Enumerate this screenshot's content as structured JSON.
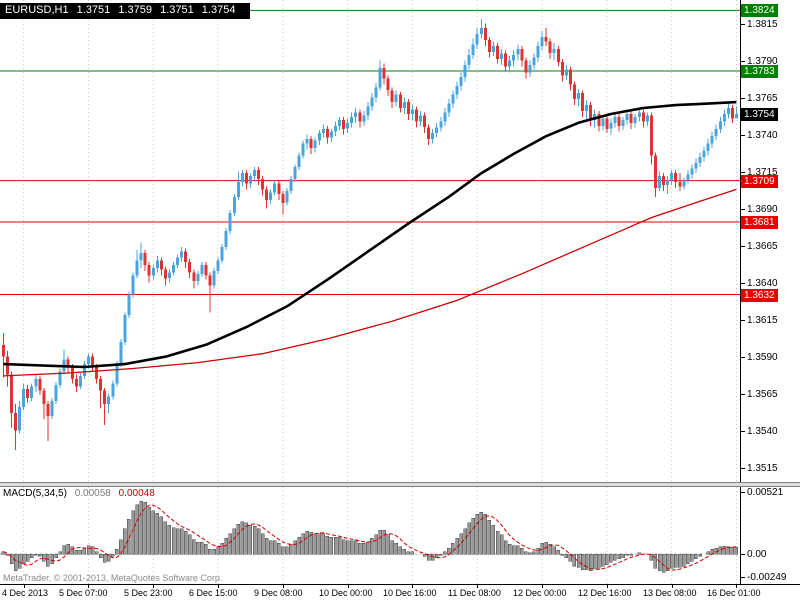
{
  "header": {
    "symbol": "EURUSD,H1",
    "open": "1.3751",
    "high": "1.3759",
    "low": "1.3751",
    "close": "1.3754"
  },
  "watermark": "MetaTrader, © 2001-2013, MetaQuotes Software Corp.",
  "colors": {
    "candle_up": "#4aa3dc",
    "candle_down": "#e03232",
    "ma_black": "#000000",
    "ma_red": "#cc0000",
    "line_green": "#008000",
    "line_red": "#e00000",
    "macd_hist_fill": "#999999",
    "macd_hist_stroke": "#444444",
    "macd_signal": "#d00000",
    "grid": "#c9c9c9",
    "badge_green": "#008000",
    "badge_red": "#e60000",
    "badge_black": "#000000"
  },
  "chart_data": {
    "type": "candlestick",
    "title": "EURUSD H1 with MACD(5,34,5)",
    "symbol": "EURUSD",
    "timeframe": "H1",
    "y_range": [
      1.3505,
      1.3831
    ],
    "price_encoding": {
      "base": 1.3,
      "unit": 0.0001
    },
    "price_ticks": [
      "1.3815",
      "1.3790",
      "1.3765",
      "1.3740",
      "1.3715",
      "1.3690",
      "1.3665",
      "1.3640",
      "1.3615",
      "1.3590",
      "1.3565",
      "1.3540",
      "1.3515"
    ],
    "price_badges": [
      {
        "value": "1.3824",
        "bg": "#008000"
      },
      {
        "value": "1.3783",
        "bg": "#008000"
      },
      {
        "value": "1.3754",
        "bg": "#000000"
      },
      {
        "value": "1.3709",
        "bg": "#e60000"
      },
      {
        "value": "1.3681",
        "bg": "#e60000"
      },
      {
        "value": "1.3632",
        "bg": "#e60000"
      }
    ],
    "hlines": [
      {
        "price": 1.3824,
        "color": "#008000"
      },
      {
        "price": 1.3783,
        "color": "#008000"
      },
      {
        "price": 1.3709,
        "color": "#e00000"
      },
      {
        "price": 1.3681,
        "color": "#e00000"
      },
      {
        "price": 1.3632,
        "color": "#e00000"
      }
    ],
    "time_labels": [
      {
        "text": "4 Dec 2013",
        "i": 5
      },
      {
        "text": "5 Dec 07:00",
        "i": 21
      },
      {
        "text": "5 Dec 23:00",
        "i": 37
      },
      {
        "text": "6 Dec 15:00",
        "i": 53
      },
      {
        "text": "9 Dec 08:00",
        "i": 69
      },
      {
        "text": "10 Dec 00:00",
        "i": 85
      },
      {
        "text": "10 Dec 16:00",
        "i": 101
      },
      {
        "text": "11 Dec 08:00",
        "i": 117
      },
      {
        "text": "12 Dec 00:00",
        "i": 133
      },
      {
        "text": "12 Dec 16:00",
        "i": 149
      },
      {
        "text": "13 Dec 08:00",
        "i": 165
      },
      {
        "text": "16 Dec 01:00",
        "i": 181
      }
    ],
    "candles": [
      [
        598,
        606,
        576,
        590
      ],
      [
        590,
        594,
        570,
        578
      ],
      [
        578,
        580,
        542,
        552
      ],
      [
        552,
        558,
        527,
        540
      ],
      [
        540,
        560,
        538,
        556
      ],
      [
        556,
        572,
        554,
        568
      ],
      [
        568,
        571,
        559,
        562
      ],
      [
        562,
        572,
        560,
        570
      ],
      [
        570,
        578,
        566,
        575
      ],
      [
        575,
        577,
        564,
        567
      ],
      [
        567,
        569,
        548,
        558
      ],
      [
        558,
        560,
        533,
        550
      ],
      [
        550,
        562,
        548,
        560
      ],
      [
        560,
        573,
        558,
        571
      ],
      [
        571,
        582,
        569,
        580
      ],
      [
        580,
        595,
        578,
        588
      ],
      [
        588,
        590,
        579,
        583
      ],
      [
        583,
        585,
        572,
        575
      ],
      [
        575,
        578,
        566,
        570
      ],
      [
        570,
        579,
        568,
        577
      ],
      [
        577,
        587,
        575,
        585
      ],
      [
        585,
        592,
        582,
        590
      ],
      [
        590,
        592,
        580,
        583
      ],
      [
        583,
        585,
        572,
        575
      ],
      [
        575,
        577,
        555,
        567
      ],
      [
        567,
        569,
        544,
        558
      ],
      [
        558,
        565,
        552,
        563
      ],
      [
        563,
        574,
        561,
        572
      ],
      [
        572,
        587,
        570,
        585
      ],
      [
        585,
        602,
        583,
        600
      ],
      [
        600,
        620,
        598,
        618
      ],
      [
        618,
        634,
        616,
        632
      ],
      [
        632,
        647,
        630,
        645
      ],
      [
        645,
        662,
        643,
        655
      ],
      [
        655,
        667,
        650,
        660
      ],
      [
        660,
        662,
        648,
        652
      ],
      [
        652,
        654,
        640,
        645
      ],
      [
        645,
        652,
        642,
        650
      ],
      [
        650,
        658,
        647,
        655
      ],
      [
        655,
        657,
        645,
        649
      ],
      [
        649,
        651,
        638,
        643
      ],
      [
        643,
        649,
        640,
        647
      ],
      [
        647,
        654,
        645,
        652
      ],
      [
        652,
        659,
        650,
        657
      ],
      [
        657,
        664,
        654,
        661
      ],
      [
        661,
        663,
        650,
        654
      ],
      [
        654,
        656,
        643,
        647
      ],
      [
        647,
        649,
        636,
        641
      ],
      [
        641,
        648,
        638,
        646
      ],
      [
        646,
        654,
        644,
        652
      ],
      [
        652,
        654,
        642,
        645
      ],
      [
        645,
        647,
        620,
        638
      ],
      [
        638,
        650,
        636,
        648
      ],
      [
        648,
        657,
        646,
        655
      ],
      [
        655,
        666,
        653,
        664
      ],
      [
        664,
        677,
        662,
        675
      ],
      [
        675,
        689,
        673,
        687
      ],
      [
        687,
        700,
        685,
        698
      ],
      [
        698,
        715,
        696,
        708
      ],
      [
        708,
        716,
        705,
        714
      ],
      [
        714,
        716,
        703,
        707
      ],
      [
        707,
        714,
        704,
        712
      ],
      [
        712,
        718,
        709,
        716
      ],
      [
        716,
        718,
        706,
        710
      ],
      [
        710,
        712,
        699,
        703
      ],
      [
        703,
        705,
        690,
        696
      ],
      [
        696,
        703,
        693,
        701
      ],
      [
        701,
        709,
        699,
        707
      ],
      [
        707,
        709,
        696,
        700
      ],
      [
        700,
        702,
        686,
        694
      ],
      [
        694,
        704,
        692,
        702
      ],
      [
        702,
        712,
        700,
        710
      ],
      [
        710,
        720,
        708,
        718
      ],
      [
        718,
        728,
        716,
        726
      ],
      [
        726,
        736,
        724,
        734
      ],
      [
        734,
        740,
        730,
        737
      ],
      [
        737,
        739,
        727,
        731
      ],
      [
        731,
        738,
        728,
        736
      ],
      [
        736,
        743,
        733,
        741
      ],
      [
        741,
        747,
        738,
        744
      ],
      [
        744,
        746,
        734,
        738
      ],
      [
        738,
        744,
        735,
        742
      ],
      [
        742,
        749,
        739,
        746
      ],
      [
        746,
        752,
        743,
        750
      ],
      [
        750,
        752,
        740,
        744
      ],
      [
        744,
        751,
        741,
        748
      ],
      [
        748,
        755,
        745,
        752
      ],
      [
        752,
        758,
        748,
        755
      ],
      [
        755,
        757,
        745,
        749
      ],
      [
        749,
        756,
        746,
        753
      ],
      [
        753,
        762,
        750,
        759
      ],
      [
        759,
        768,
        756,
        765
      ],
      [
        765,
        775,
        762,
        772
      ],
      [
        772,
        790,
        770,
        785
      ],
      [
        785,
        788,
        774,
        778
      ],
      [
        778,
        780,
        766,
        770
      ],
      [
        770,
        772,
        758,
        762
      ],
      [
        762,
        770,
        759,
        767
      ],
      [
        767,
        769,
        755,
        758
      ],
      [
        758,
        765,
        754,
        762
      ],
      [
        762,
        764,
        750,
        754
      ],
      [
        754,
        760,
        750,
        757
      ],
      [
        757,
        759,
        745,
        749
      ],
      [
        749,
        756,
        746,
        753
      ],
      [
        753,
        755,
        741,
        745
      ],
      [
        745,
        747,
        733,
        737
      ],
      [
        737,
        744,
        734,
        741
      ],
      [
        741,
        748,
        738,
        745
      ],
      [
        745,
        752,
        742,
        749
      ],
      [
        749,
        758,
        746,
        755
      ],
      [
        755,
        764,
        752,
        761
      ],
      [
        761,
        770,
        758,
        767
      ],
      [
        767,
        776,
        764,
        773
      ],
      [
        773,
        782,
        770,
        779
      ],
      [
        779,
        790,
        776,
        787
      ],
      [
        787,
        798,
        784,
        794
      ],
      [
        794,
        805,
        791,
        801
      ],
      [
        801,
        812,
        798,
        808
      ],
      [
        808,
        818,
        805,
        812
      ],
      [
        812,
        815,
        800,
        804
      ],
      [
        804,
        806,
        792,
        796
      ],
      [
        796,
        803,
        793,
        800
      ],
      [
        800,
        802,
        788,
        791
      ],
      [
        791,
        798,
        787,
        795
      ],
      [
        795,
        797,
        783,
        786
      ],
      [
        786,
        793,
        782,
        790
      ],
      [
        790,
        797,
        786,
        794
      ],
      [
        794,
        801,
        790,
        798
      ],
      [
        798,
        800,
        786,
        790
      ],
      [
        790,
        792,
        778,
        782
      ],
      [
        782,
        790,
        779,
        787
      ],
      [
        787,
        795,
        784,
        792
      ],
      [
        792,
        803,
        789,
        800
      ],
      [
        800,
        810,
        797,
        806
      ],
      [
        806,
        812,
        800,
        803
      ],
      [
        803,
        805,
        791,
        795
      ],
      [
        795,
        802,
        790,
        798
      ],
      [
        798,
        800,
        786,
        789
      ],
      [
        789,
        791,
        776,
        780
      ],
      [
        780,
        787,
        777,
        784
      ],
      [
        784,
        786,
        770,
        774
      ],
      [
        774,
        776,
        760,
        764
      ],
      [
        764,
        771,
        759,
        768
      ],
      [
        768,
        770,
        752,
        756
      ],
      [
        756,
        763,
        750,
        760
      ],
      [
        760,
        762,
        746,
        750
      ],
      [
        750,
        757,
        745,
        754
      ],
      [
        754,
        756,
        742,
        746
      ],
      [
        746,
        753,
        743,
        751
      ],
      [
        751,
        753,
        741,
        744
      ],
      [
        744,
        751,
        740,
        748
      ],
      [
        748,
        755,
        745,
        752
      ],
      [
        752,
        754,
        742,
        746
      ],
      [
        746,
        752,
        743,
        750
      ],
      [
        750,
        757,
        747,
        754
      ],
      [
        754,
        756,
        744,
        748
      ],
      [
        748,
        754,
        745,
        752
      ],
      [
        752,
        758,
        749,
        755
      ],
      [
        755,
        757,
        745,
        749
      ],
      [
        749,
        755,
        746,
        753
      ],
      [
        753,
        755,
        720,
        726
      ],
      [
        726,
        728,
        698,
        704
      ],
      [
        704,
        715,
        702,
        712
      ],
      [
        712,
        714,
        702,
        706
      ],
      [
        706,
        712,
        700,
        709
      ],
      [
        709,
        716,
        706,
        714
      ],
      [
        714,
        716,
        704,
        708
      ],
      [
        708,
        714,
        702,
        705
      ],
      [
        705,
        711,
        703,
        709
      ],
      [
        709,
        716,
        707,
        713
      ],
      [
        713,
        720,
        710,
        717
      ],
      [
        717,
        724,
        714,
        721
      ],
      [
        721,
        728,
        718,
        725
      ],
      [
        725,
        732,
        722,
        729
      ],
      [
        729,
        737,
        726,
        734
      ],
      [
        734,
        742,
        731,
        739
      ],
      [
        739,
        747,
        736,
        744
      ],
      [
        744,
        752,
        741,
        749
      ],
      [
        749,
        757,
        746,
        754
      ],
      [
        754,
        761,
        751,
        758
      ],
      [
        758,
        760,
        748,
        751
      ],
      [
        751,
        759,
        751,
        754
      ]
    ],
    "ma_black_anchors": [
      [
        0,
        585
      ],
      [
        10,
        584
      ],
      [
        20,
        583
      ],
      [
        30,
        585
      ],
      [
        40,
        590
      ],
      [
        50,
        598
      ],
      [
        60,
        610
      ],
      [
        70,
        624
      ],
      [
        80,
        642
      ],
      [
        90,
        661
      ],
      [
        100,
        680
      ],
      [
        110,
        698
      ],
      [
        118,
        714
      ],
      [
        126,
        727
      ],
      [
        134,
        739
      ],
      [
        142,
        748
      ],
      [
        150,
        754
      ],
      [
        158,
        758
      ],
      [
        166,
        760
      ],
      [
        174,
        761
      ],
      [
        181,
        762
      ]
    ],
    "ma_red_anchors": [
      [
        0,
        577
      ],
      [
        16,
        579
      ],
      [
        32,
        582
      ],
      [
        48,
        586
      ],
      [
        64,
        592
      ],
      [
        80,
        602
      ],
      [
        96,
        614
      ],
      [
        112,
        628
      ],
      [
        128,
        646
      ],
      [
        144,
        665
      ],
      [
        160,
        684
      ],
      [
        172,
        695
      ],
      [
        181,
        703
      ]
    ],
    "macd": {
      "name": "MACD(5,34,5)",
      "value": "0.00058",
      "signal": "0.00048",
      "signal_period": 5,
      "range": [
        -0.00249,
        0.00521
      ],
      "axis_labels": [
        "0.00521",
        "0.00",
        "-0.00249"
      ],
      "values": [
        2,
        -1,
        -8,
        -14,
        -12,
        -8,
        -6,
        -3,
        -1,
        -2,
        -6,
        -10,
        -8,
        -3,
        2,
        7,
        8,
        6,
        3,
        3,
        5,
        7,
        6,
        2,
        -3,
        -7,
        -6,
        -2,
        4,
        12,
        21,
        29,
        36,
        41,
        44,
        43,
        39,
        36,
        34,
        31,
        27,
        24,
        22,
        21,
        21,
        19,
        16,
        12,
        10,
        10,
        8,
        4,
        4,
        6,
        9,
        13,
        17,
        21,
        25,
        27,
        26,
        24,
        23,
        21,
        17,
        13,
        11,
        11,
        9,
        6,
        6,
        8,
        11,
        14,
        17,
        19,
        18,
        17,
        17,
        17,
        15,
        14,
        14,
        14,
        12,
        11,
        11,
        11,
        9,
        9,
        10,
        13,
        16,
        20,
        20,
        16,
        11,
        9,
        6,
        4,
        2,
        2,
        0,
        0,
        -2,
        -5,
        -5,
        -3,
        -1,
        2,
        5,
        9,
        13,
        17,
        21,
        26,
        30,
        33,
        35,
        33,
        28,
        24,
        19,
        16,
        11,
        8,
        7,
        7,
        5,
        2,
        1,
        2,
        5,
        9,
        10,
        8,
        6,
        3,
        -1,
        -3,
        -6,
        -10,
        -11,
        -13,
        -13,
        -14,
        -12,
        -12,
        -10,
        -9,
        -7,
        -5,
        -4,
        -3,
        -1,
        -1,
        0,
        1,
        0,
        0,
        -5,
        -12,
        -14,
        -15,
        -14,
        -12,
        -11,
        -11,
        -10,
        -8,
        -6,
        -4,
        -2,
        0,
        2,
        4,
        5,
        6,
        6.5,
        6.2,
        5.5,
        5.8
      ]
    }
  }
}
